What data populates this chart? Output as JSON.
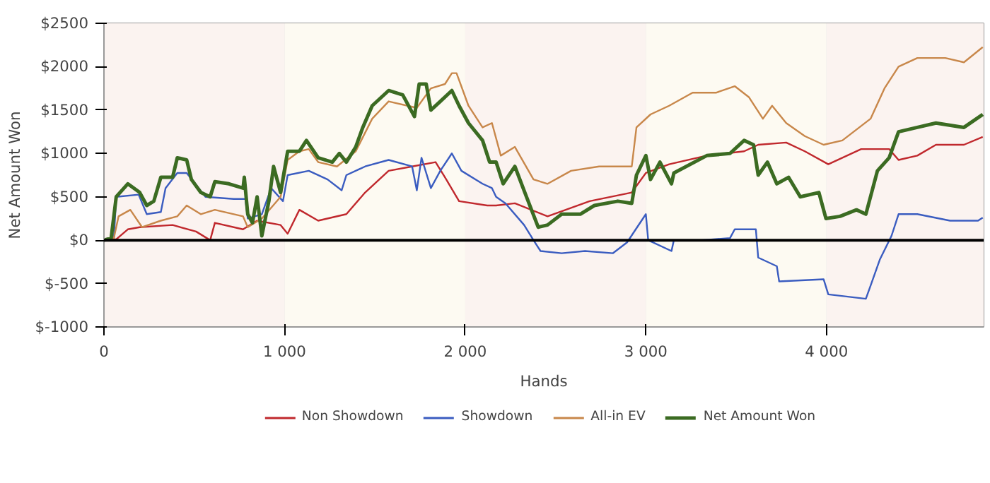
{
  "chart_data": {
    "type": "line",
    "xlabel": "Hands",
    "ylabel": "Net Amount Won",
    "xlim": [
      0,
      4870
    ],
    "ylim": [
      -1000,
      2500
    ],
    "xticks": [
      0,
      {
        "value": 1000,
        "label": "1 000"
      },
      {
        "value": 2000,
        "label": "2 000"
      },
      {
        "value": 3000,
        "label": "3 000"
      },
      {
        "value": 4000,
        "label": "4 000"
      }
    ],
    "yticks": [
      {
        "value": -1000,
        "label": "$-1000"
      },
      {
        "value": -500,
        "label": "$-500"
      },
      {
        "value": 0,
        "label": "$0"
      },
      {
        "value": 500,
        "label": "$500"
      },
      {
        "value": 1000,
        "label": "$1000"
      },
      {
        "value": 1500,
        "label": "$1500"
      },
      {
        "value": 2000,
        "label": "$2000"
      },
      {
        "value": 2500,
        "label": "$2500"
      }
    ],
    "grid": true,
    "legend": "bottom",
    "line_style": "solid",
    "marker": "none",
    "ref_lines": [
      {
        "axis": "y",
        "value": 0,
        "color": "#000000"
      }
    ],
    "bands": [
      {
        "axis": "x",
        "from": 0,
        "to": 1000,
        "color": "#fbf3f0"
      },
      {
        "axis": "x",
        "from": 1000,
        "to": 2000,
        "color": "#fdfaf2"
      },
      {
        "axis": "x",
        "from": 2000,
        "to": 3000,
        "color": "#fbf3f0"
      },
      {
        "axis": "x",
        "from": 3000,
        "to": 4000,
        "color": "#fdfaf2"
      },
      {
        "axis": "x",
        "from": 4000,
        "to": 4870,
        "color": "#fbf3f0"
      }
    ],
    "series": [
      {
        "name": "Non Showdown",
        "color": "#c0282d",
        "x": [
          0,
          68,
          132,
          198,
          380,
          510,
          588,
          614,
          770,
          848,
          978,
          1017,
          1082,
          1186,
          1342,
          1446,
          1576,
          1706,
          1836,
          1888,
          1966,
          2122,
          2171,
          2275,
          2456,
          2689,
          2922,
          3000,
          3129,
          3337,
          3544,
          3622,
          3777,
          3880,
          4010,
          4192,
          4347,
          4399,
          4503,
          4606,
          4761,
          4865
        ],
        "values": [
          10,
          10,
          125,
          150,
          175,
          100,
          0,
          200,
          125,
          225,
          175,
          75,
          350,
          225,
          300,
          550,
          800,
          850,
          900,
          725,
          450,
          400,
          400,
          425,
          275,
          450,
          550,
          775,
          875,
          975,
          1025,
          1100,
          1125,
          1025,
          875,
          1050,
          1050,
          925,
          975,
          1100,
          1100,
          1190
        ]
      },
      {
        "name": "Showdown",
        "color": "#3a5cc0",
        "x": [
          0,
          55,
          68,
          192,
          237,
          315,
          341,
          406,
          458,
          562,
          718,
          783,
          796,
          874,
          926,
          991,
          1017,
          1134,
          1238,
          1316,
          1342,
          1446,
          1576,
          1706,
          1732,
          1758,
          1810,
          1862,
          1926,
          1979,
          2096,
          2148,
          2171,
          2223,
          2326,
          2378,
          2417,
          2534,
          2663,
          2818,
          2896,
          3000,
          3013,
          3142,
          3155,
          3311,
          3466,
          3492,
          3609,
          3622,
          3725,
          3738,
          3984,
          4010,
          4218,
          4244,
          4295,
          4360,
          4399,
          4503,
          4684,
          4839,
          4865
        ],
        "values": [
          10,
          25,
          500,
          525,
          300,
          325,
          600,
          775,
          775,
          500,
          475,
          475,
          250,
          300,
          600,
          450,
          750,
          800,
          700,
          575,
          750,
          850,
          925,
          850,
          575,
          950,
          600,
          800,
          1000,
          800,
          650,
          600,
          500,
          425,
          175,
          0,
          -125,
          -150,
          -125,
          -150,
          -25,
          300,
          0,
          -125,
          0,
          0,
          25,
          125,
          125,
          -200,
          -300,
          -475,
          -450,
          -625,
          -675,
          -525,
          -225,
          50,
          300,
          300,
          225,
          225,
          260
        ]
      },
      {
        "name": "All-in EV",
        "color": "#c8874a",
        "x": [
          0,
          55,
          81,
          146,
          211,
          315,
          406,
          458,
          536,
          614,
          770,
          796,
          874,
          978,
          1017,
          1082,
          1134,
          1186,
          1290,
          1394,
          1485,
          1576,
          1732,
          1810,
          1888,
          1926,
          1952,
          2018,
          2096,
          2148,
          2197,
          2275,
          2378,
          2456,
          2586,
          2741,
          2922,
          2948,
          3026,
          3129,
          3259,
          3388,
          3492,
          3570,
          3648,
          3699,
          3777,
          3880,
          3984,
          4088,
          4244,
          4321,
          4399,
          4503,
          4658,
          4761,
          4865
        ],
        "values": [
          10,
          25,
          275,
          350,
          150,
          225,
          275,
          400,
          300,
          350,
          275,
          150,
          250,
          500,
          925,
          1025,
          1050,
          900,
          850,
          1025,
          1400,
          1600,
          1525,
          1750,
          1800,
          1925,
          1925,
          1550,
          1300,
          1350,
          975,
          1075,
          700,
          650,
          800,
          850,
          850,
          1300,
          1450,
          1550,
          1700,
          1700,
          1775,
          1650,
          1400,
          1550,
          1350,
          1200,
          1100,
          1150,
          1400,
          1750,
          2000,
          2100,
          2100,
          2050,
          2225
        ]
      },
      {
        "name": "Net Amount Won",
        "color": "#3b6b22",
        "x": [
          0,
          40,
          68,
          132,
          198,
          237,
          276,
          315,
          380,
          406,
          458,
          484,
          536,
          588,
          614,
          692,
          770,
          777,
          796,
          822,
          848,
          874,
          913,
          939,
          978,
          1017,
          1082,
          1121,
          1186,
          1264,
          1303,
          1342,
          1394,
          1433,
          1485,
          1576,
          1654,
          1719,
          1745,
          1784,
          1810,
          1862,
          1926,
          1966,
          2018,
          2096,
          2135,
          2171,
          2210,
          2275,
          2339,
          2404,
          2456,
          2534,
          2637,
          2715,
          2845,
          2922,
          2948,
          3000,
          3026,
          3078,
          3142,
          3155,
          3337,
          3466,
          3544,
          3596,
          3622,
          3673,
          3725,
          3790,
          3855,
          3958,
          3997,
          4075,
          4166,
          4218,
          4282,
          4347,
          4399,
          4503,
          4606,
          4761,
          4865
        ],
        "values": [
          0,
          25,
          500,
          650,
          550,
          400,
          450,
          725,
          725,
          950,
          925,
          700,
          550,
          500,
          675,
          650,
          600,
          725,
          300,
          200,
          500,
          50,
          450,
          850,
          550,
          1025,
          1025,
          1150,
          950,
          900,
          1000,
          900,
          1075,
          1300,
          1550,
          1725,
          1675,
          1425,
          1800,
          1800,
          1500,
          1600,
          1725,
          1550,
          1350,
          1150,
          900,
          900,
          650,
          850,
          500,
          150,
          175,
          300,
          300,
          400,
          450,
          425,
          750,
          975,
          700,
          900,
          650,
          775,
          975,
          1000,
          1150,
          1100,
          750,
          900,
          650,
          725,
          500,
          550,
          250,
          275,
          350,
          300,
          800,
          950,
          1250,
          1300,
          1350,
          1300,
          1450
        ]
      }
    ]
  }
}
